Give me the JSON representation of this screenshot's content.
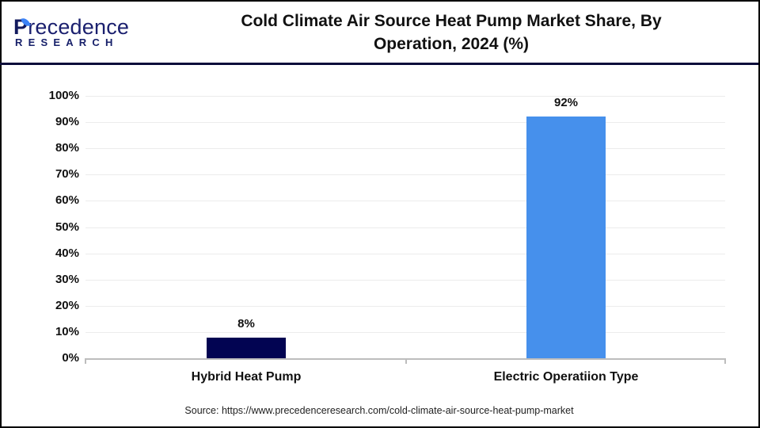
{
  "header": {
    "logo": {
      "main_first": "P",
      "main_rest": "recedence",
      "sub": "RESEARCH"
    },
    "title_line1": "Cold Climate Air Source Heat Pump Market Share, By",
    "title_line2": "Operation, 2024 (%)"
  },
  "footer": {
    "source": "Source: https://www.precedenceresearch.com/cold-climate-air-source-heat-pump-market"
  },
  "colors": {
    "hybrid_bar": "#020452",
    "electric_bar": "#4690ec",
    "header_rule": "#0b0c3a",
    "gridline": "#ececec",
    "axis": "#bdbdbd"
  },
  "chart_data": {
    "type": "bar",
    "title": "Cold Climate Air Source Heat Pump Market Share, By Operation, 2024 (%)",
    "categories": [
      "Hybrid Heat Pump",
      "Electric Operatiion Type"
    ],
    "values": [
      8,
      92
    ],
    "data_labels": [
      "8%",
      "92%"
    ],
    "bar_colors": [
      "#020452",
      "#4690ec"
    ],
    "xlabel": "",
    "ylabel": "",
    "ylim": [
      0,
      100
    ],
    "yticks": [
      "0%",
      "10%",
      "20%",
      "30%",
      "40%",
      "50%",
      "60%",
      "70%",
      "80%",
      "90%",
      "100%"
    ],
    "grid": true,
    "legend": "none"
  }
}
